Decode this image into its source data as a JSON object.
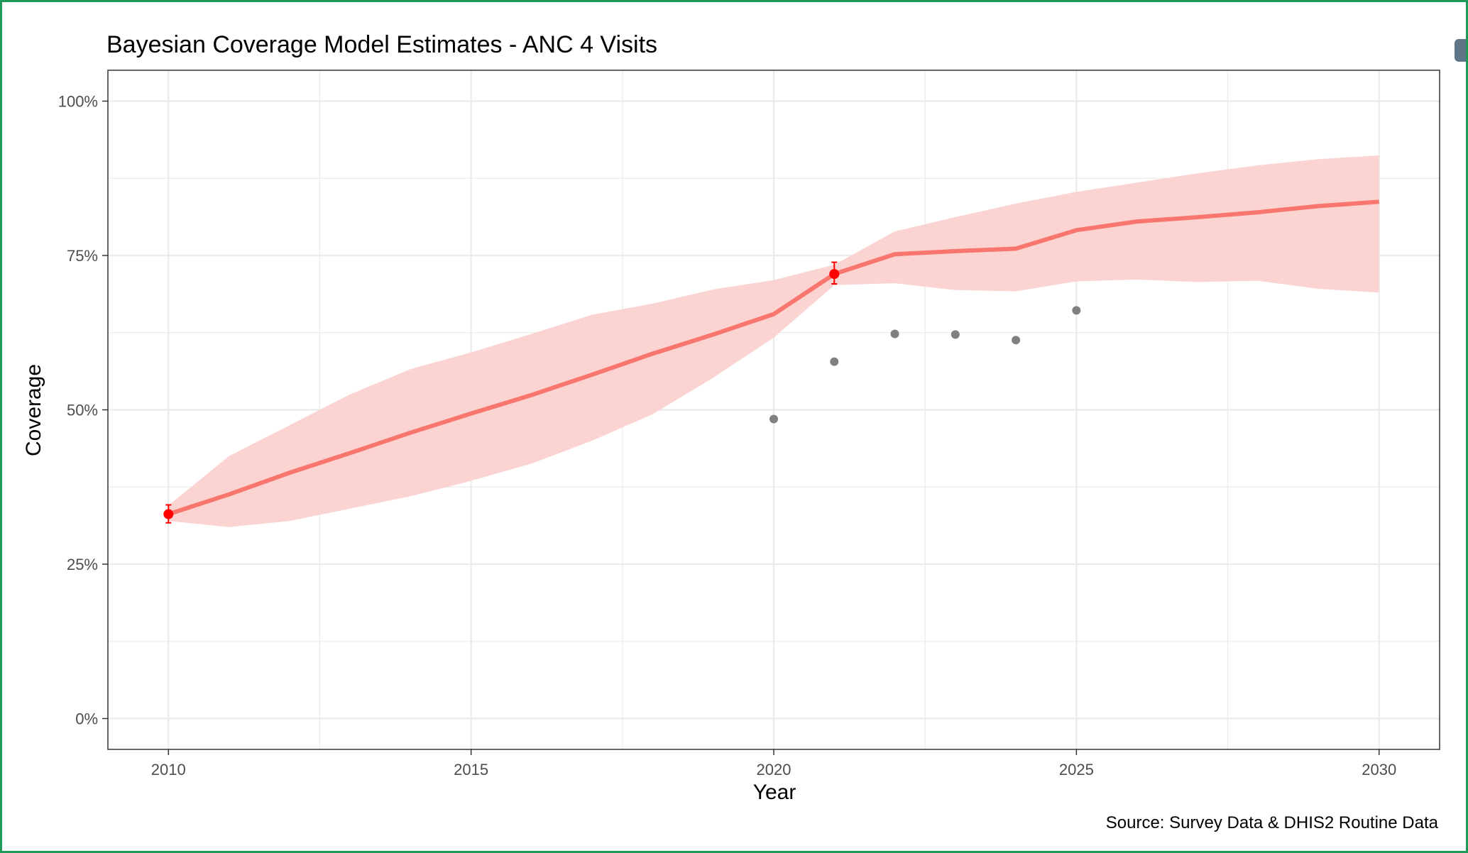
{
  "chart_data": {
    "type": "line",
    "title": "Bayesian Coverage Model Estimates - ANC 4 Visits",
    "xlabel": "Year",
    "ylabel": "Coverage",
    "caption": "Source: Survey Data & DHIS2 Routine Data",
    "xlim": [
      2009,
      2031
    ],
    "ylim": [
      -5,
      105
    ],
    "x_ticks": [
      2010,
      2015,
      2020,
      2025,
      2030
    ],
    "x_tick_labels": [
      "2010",
      "2015",
      "2020",
      "2025",
      "2030"
    ],
    "y_ticks": [
      0,
      25,
      50,
      75,
      100
    ],
    "y_tick_labels": [
      "0%",
      "25%",
      "50%",
      "75%",
      "100%"
    ],
    "grid": true,
    "colors": {
      "estimate_line": "#f8766d",
      "credible_band": "#fbd3d1",
      "survey_points": "#ff0000",
      "routine_points": "#808080",
      "grid": "#ebebeb",
      "panel_border": "#333333"
    },
    "series": [
      {
        "kind": "line",
        "x": [
          2010,
          2011,
          2012,
          2013,
          2014,
          2015,
          2016,
          2017,
          2018,
          2019,
          2020,
          2021,
          2022,
          2023,
          2024,
          2025,
          2026,
          2027,
          2028,
          2029,
          2030
        ],
        "values": [
          33.1,
          36.3,
          39.8,
          43.0,
          46.3,
          49.4,
          52.4,
          55.7,
          59.1,
          62.2,
          65.5,
          72.0,
          75.2,
          75.7,
          76.1,
          79.1,
          80.5,
          81.2,
          82.0,
          83.0,
          83.7
        ]
      },
      {
        "kind": "band",
        "x": [
          2010,
          2011,
          2012,
          2013,
          2014,
          2015,
          2016,
          2017,
          2018,
          2019,
          2020,
          2021,
          2022,
          2023,
          2024,
          2025,
          2026,
          2027,
          2028,
          2029,
          2030
        ],
        "lower": [
          32.0,
          31.0,
          32.0,
          34.0,
          36.0,
          38.5,
          41.3,
          45.0,
          49.3,
          55.2,
          61.7,
          70.2,
          70.5,
          69.4,
          69.2,
          70.8,
          71.1,
          70.7,
          70.9,
          69.6,
          69.0
        ],
        "upper": [
          34.5,
          42.5,
          47.5,
          52.5,
          56.6,
          59.3,
          62.3,
          65.4,
          67.2,
          69.5,
          71.0,
          73.5,
          78.9,
          81.2,
          83.4,
          85.3,
          86.8,
          88.3,
          89.6,
          90.6,
          91.2
        ]
      },
      {
        "kind": "points",
        "x": [
          2010,
          2021
        ],
        "values": [
          33.1,
          72.0
        ],
        "error_low": [
          31.7,
          70.4
        ],
        "error_high": [
          34.6,
          73.9
        ]
      },
      {
        "kind": "points",
        "x": [
          2020,
          2021,
          2022,
          2023,
          2024,
          2025
        ],
        "values": [
          48.5,
          57.8,
          62.3,
          62.2,
          61.3,
          66.1
        ]
      }
    ]
  }
}
